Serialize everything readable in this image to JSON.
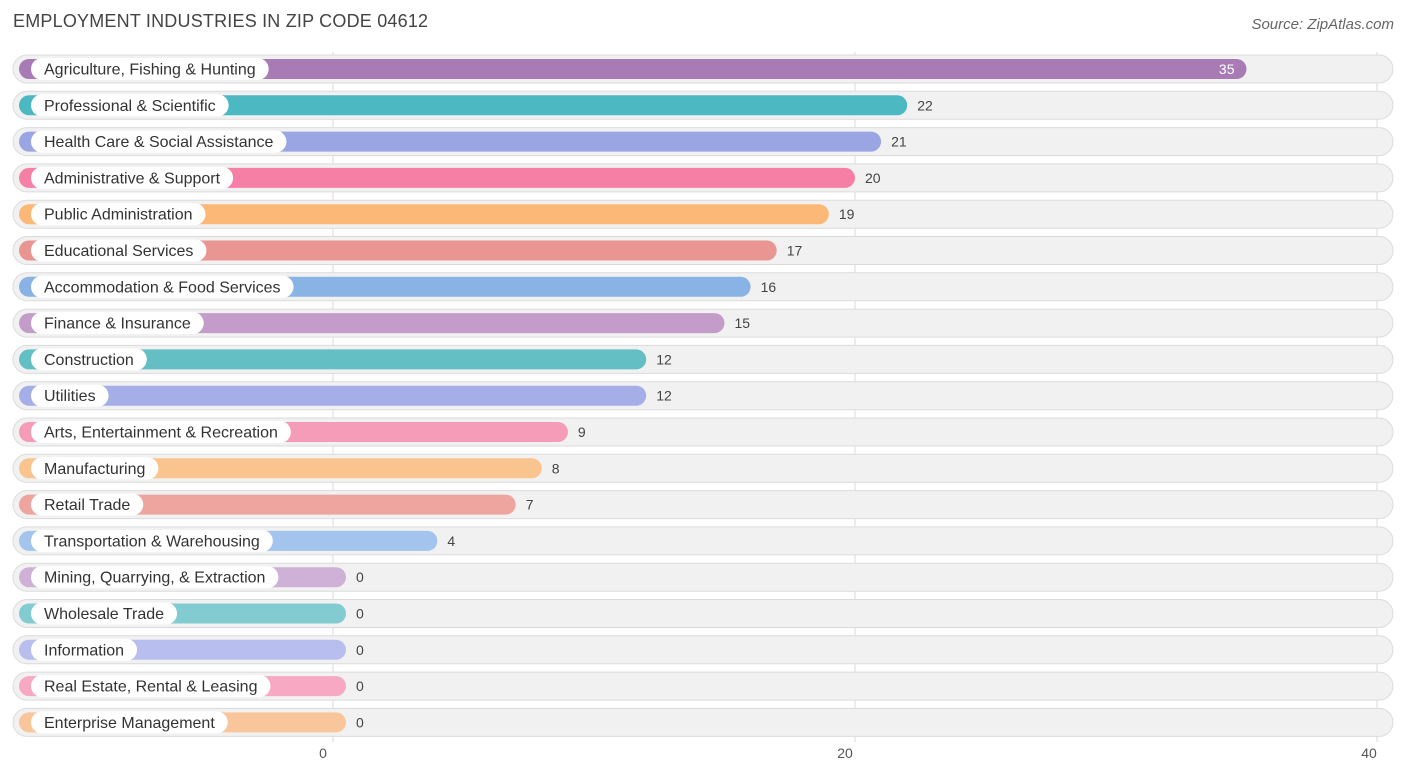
{
  "header": {
    "title": "EMPLOYMENT INDUSTRIES IN ZIP CODE 04612",
    "source": "Source: ZipAtlas.com"
  },
  "chart_data": {
    "type": "bar",
    "orientation": "horizontal",
    "title": "EMPLOYMENT INDUSTRIES IN ZIP CODE 04612",
    "xlabel": "",
    "ylabel": "",
    "xlim": [
      0,
      40
    ],
    "xticks": [
      0,
      20,
      40
    ],
    "grid": true,
    "categories": [
      "Agriculture, Fishing & Hunting",
      "Professional & Scientific",
      "Health Care & Social Assistance",
      "Administrative & Support",
      "Public Administration",
      "Educational Services",
      "Accommodation & Food Services",
      "Finance & Insurance",
      "Construction",
      "Utilities",
      "Arts, Entertainment & Recreation",
      "Manufacturing",
      "Retail Trade",
      "Transportation & Warehousing",
      "Mining, Quarrying, & Extraction",
      "Wholesale Trade",
      "Information",
      "Real Estate, Rental & Leasing",
      "Enterprise Management"
    ],
    "values": [
      35,
      22,
      21,
      20,
      19,
      17,
      16,
      15,
      12,
      12,
      9,
      8,
      7,
      4,
      0,
      0,
      0,
      0,
      0
    ],
    "colors": [
      "#a97bb5",
      "#4bb8c2",
      "#99a6e3",
      "#f57fa5",
      "#fbb877",
      "#e99591",
      "#88b3e4",
      "#c39cc9",
      "#63bfc4",
      "#a6aee8",
      "#f59cb8",
      "#f9c48e",
      "#eea49f",
      "#a3c4ec",
      "#cfb0d6",
      "#82ccd1",
      "#b8bfee",
      "#f7a9c3",
      "#f9c69c"
    ]
  }
}
